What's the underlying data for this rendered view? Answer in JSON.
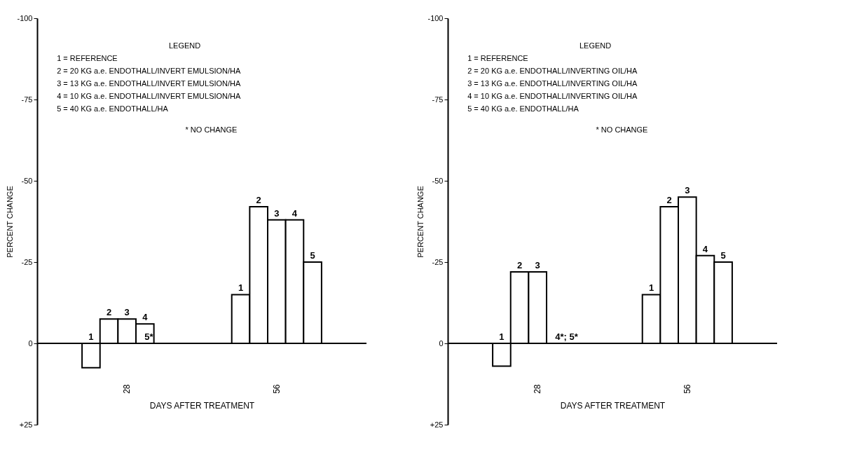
{
  "chart_data": [
    {
      "type": "bar",
      "ylabel": "PERCENT CHANGE",
      "xlabel": "DAYS AFTER TREATMENT",
      "categories": [
        "28",
        "56"
      ],
      "series": [
        {
          "name": "1",
          "color": "#ffffff",
          "values": [
            7.5,
            -15
          ]
        },
        {
          "name": "2",
          "color": "#ffffff",
          "values": [
            -7.5,
            -42
          ]
        },
        {
          "name": "3",
          "color": "#ffffff",
          "values": [
            -7.5,
            -38
          ]
        },
        {
          "name": "4",
          "color": "#ffffff",
          "values": [
            -6,
            -38
          ]
        },
        {
          "name": "5",
          "color": "#ffffff",
          "values": [
            0,
            -25
          ]
        }
      ],
      "ylim": [
        25,
        -100
      ],
      "yticks": [
        {
          "value": 25,
          "label": "+25"
        },
        0,
        -25,
        -50,
        -75,
        -100
      ],
      "ref_lines": [
        {
          "axis": "y",
          "value": 0
        }
      ],
      "grid": false,
      "legend": false,
      "annotations": [
        "LEGEND",
        "1 = REFERENCE",
        "2 = 20 KG a.e. ENDOTHALL/INVERT EMULSION/HA",
        "3 = 13 KG a.e. ENDOTHALL/INVERT EMULSION/HA",
        "4 = 10 KG a.e. ENDOTHALL/INVERT EMULSION/HA",
        "5 = 40 KG a.e. ENDOTHALL/HA",
        "* NO CHANGE",
        {
          "text": "5*",
          "x": "28",
          "y": 0
        }
      ]
    },
    {
      "type": "bar",
      "ylabel": "PERCENT CHANGE",
      "xlabel": "DAYS AFTER TREATMENT",
      "categories": [
        "28",
        "56"
      ],
      "series": [
        {
          "name": "1",
          "color": "#ffffff",
          "values": [
            7,
            -15
          ]
        },
        {
          "name": "2",
          "color": "#ffffff",
          "values": [
            -22,
            -42
          ]
        },
        {
          "name": "3",
          "color": "#ffffff",
          "values": [
            -22,
            -45
          ]
        },
        {
          "name": "4",
          "color": "#ffffff",
          "values": [
            0,
            -27
          ]
        },
        {
          "name": "5",
          "color": "#ffffff",
          "values": [
            0,
            -25
          ]
        }
      ],
      "ylim": [
        25,
        -100
      ],
      "yticks": [
        {
          "value": 25,
          "label": "+25"
        },
        0,
        -25,
        -50,
        -75,
        -100
      ],
      "ref_lines": [
        {
          "axis": "y",
          "value": 0
        }
      ],
      "grid": false,
      "legend": false,
      "annotations": [
        "LEGEND",
        "1 = REFERENCE",
        "2 = 20 KG a.e. ENDOTHALL/INVERTING OIL/HA",
        "3 = 13 KG a.e. ENDOTHALL/INVERTING OIL/HA",
        "4 = 10 KG a.e. ENDOTHALL/INVERTING OIL/HA",
        "5 = 40 KG a.e. ENDOTHALL/HA",
        "* NO CHANGE",
        {
          "text": "4*; 5*",
          "x": "28",
          "y": 0
        }
      ]
    }
  ]
}
